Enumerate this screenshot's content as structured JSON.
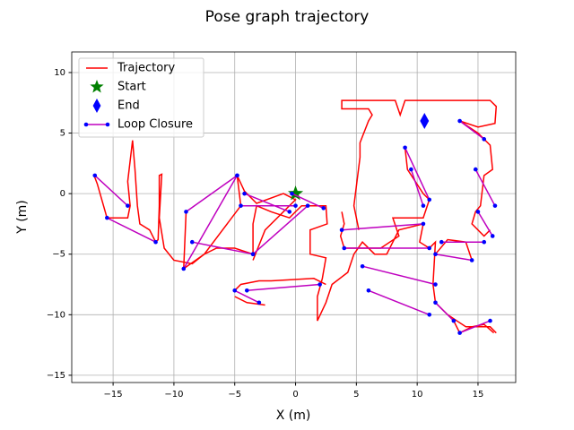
{
  "chart_data": {
    "type": "line",
    "title": "Pose graph trajectory",
    "x_label": "X (m)",
    "y_label": "Y (m)",
    "xlim": [
      -18.4,
      18.1
    ],
    "ylim": [
      -15.6,
      11.7
    ],
    "xticks": [
      {
        "value": -15,
        "label": "−15"
      },
      {
        "value": -10,
        "label": "−10"
      },
      {
        "value": -5,
        "label": "−5"
      },
      0,
      5,
      10,
      15
    ],
    "yticks": [
      {
        "value": -15,
        "label": "−15"
      },
      {
        "value": -10,
        "label": "−10"
      },
      {
        "value": -5,
        "label": "−5"
      },
      0,
      5,
      10
    ],
    "grid": true,
    "legend": "upper left",
    "series": [
      {
        "name": "Trajectory",
        "color": "#ff0000",
        "x": [
          -16.6,
          -16.3,
          -15.5,
          -13.8,
          -13.6,
          -13.8,
          -13.4,
          -13.2,
          -13,
          -12.8,
          -12,
          -11.5,
          -11.3,
          -11.2,
          -11.2,
          -11,
          -11.2,
          -10.8,
          -10,
          -8.5,
          -7.5,
          -6.5,
          -5,
          -3.5,
          -3.5,
          -3.2,
          -2,
          -0.5,
          0,
          0.5,
          2.5,
          2.6,
          1.2,
          1.2,
          2.5,
          2.2,
          1.8,
          1.8,
          2.5,
          3,
          4.3,
          4.8,
          5.5,
          6.5,
          7.5,
          8.5,
          10.5,
          10.2,
          11,
          11.5,
          11.3,
          11.5,
          12.5,
          14,
          16,
          16.5,
          null,
          5.2,
          4.8,
          5.3,
          5.3,
          6,
          6.3,
          6,
          3.8,
          3.8,
          8.2,
          8.6,
          9,
          16,
          16.5,
          16.4,
          15,
          13.5,
          15,
          16,
          16.2,
          15.5,
          15.2,
          14.8,
          14.5,
          15.5,
          16,
          null,
          -9,
          -9.2,
          -7.5,
          -4.5,
          -4.8,
          -4.2,
          -3.2,
          -1,
          0,
          -2.5,
          -3.5,
          null,
          -5,
          -4.5,
          -3,
          -2,
          1.5,
          2.5,
          null,
          -5,
          -4,
          -2.5,
          null,
          9,
          9.2,
          10.5,
          11,
          10.5,
          9.5,
          8,
          8.5,
          7,
          4,
          3.7,
          4,
          3.8,
          null,
          11.5,
          12.5,
          14,
          14.5,
          null,
          13,
          13.5,
          14.5,
          15.5,
          16.3
        ],
        "values": [
          1.6,
          0.8,
          -2,
          -2,
          -1,
          1,
          4.4,
          2,
          -1,
          -2.5,
          -3,
          -4,
          -3.8,
          -1,
          1.5,
          1.6,
          -2,
          -4.5,
          -5.5,
          -5.8,
          -5,
          -4.5,
          -4.5,
          -5,
          -2.5,
          -1,
          -1.5,
          -2,
          -1.5,
          -1,
          -1,
          -2.5,
          -3,
          -5,
          -5.3,
          -7,
          -8.5,
          -10.5,
          -9,
          -7.5,
          -6.5,
          -5,
          -4,
          -5,
          -5,
          -3,
          -2.5,
          -4,
          -4.5,
          -4,
          -7.5,
          -9,
          -10,
          -11,
          -11,
          -11.5,
          null,
          -3,
          -1,
          3,
          4.2,
          6,
          6.5,
          7,
          7,
          7.7,
          7.7,
          6.5,
          7.7,
          7.7,
          7.2,
          5.8,
          5.5,
          6,
          5,
          4,
          2,
          1.5,
          -1,
          -1.5,
          -2.5,
          -3.5,
          -3,
          null,
          -1.5,
          -6.2,
          -5,
          -1,
          1.5,
          0.2,
          -0.8,
          0,
          -0.5,
          -3,
          -5.5,
          null,
          -8,
          -7.5,
          -7.2,
          -7.2,
          -7,
          -7.5,
          null,
          -8.5,
          -9,
          -9.2,
          null,
          3.8,
          2,
          0,
          -0.5,
          -2,
          -2,
          -2,
          -3.5,
          -4.5,
          -4.5,
          -3.5,
          -2.5,
          -1.5,
          null,
          -5,
          -3.8,
          -4,
          -5.5,
          null,
          -10.5,
          -11.5,
          -11,
          -10.8,
          -11.5
        ]
      },
      {
        "name": "Start",
        "color": "#008000",
        "marker": "star",
        "x": [
          0
        ],
        "values": [
          0
        ]
      },
      {
        "name": "End",
        "color": "#0000ff",
        "marker": "diamond",
        "x": [
          10.6
        ],
        "values": [
          6
        ]
      },
      {
        "name": "Loop Closure",
        "color": "#bf00bf",
        "marker_color": "#0000ff",
        "x": [
          -15.5,
          -11.5,
          null,
          -16.5,
          -13.8,
          null,
          -9,
          -4.8,
          null,
          -9.2,
          -4.8,
          null,
          -8.5,
          -3.5,
          null,
          -4.5,
          0,
          null,
          -4.2,
          -0.5,
          null,
          -3.5,
          1,
          null,
          -4,
          2,
          null,
          -5,
          -3,
          null,
          3.8,
          10.5,
          null,
          4,
          11,
          null,
          5.5,
          11.5,
          null,
          6,
          11,
          null,
          9,
          11,
          null,
          9.5,
          10.5,
          null,
          11.5,
          14.5,
          null,
          12,
          15.5,
          null,
          13.5,
          16,
          null,
          13.5,
          15.5,
          null,
          14.8,
          16.4,
          null,
          15,
          16.2,
          null,
          11.5,
          13,
          null,
          -0.3,
          2.3
        ],
        "values": [
          -2,
          -4,
          null,
          1.5,
          -1,
          null,
          -1.5,
          1.5,
          null,
          -6.2,
          1.5,
          null,
          -4,
          -5,
          null,
          -1,
          -1,
          null,
          0,
          -1.5,
          null,
          -5,
          -1,
          null,
          -8,
          -7.5,
          null,
          -8,
          -9,
          null,
          -3,
          -2.5,
          null,
          -4.5,
          -4.5,
          null,
          -6,
          -7.5,
          null,
          -8,
          -10,
          null,
          3.8,
          -0.5,
          null,
          2,
          -1,
          null,
          -5,
          -5.5,
          null,
          -4,
          -4,
          null,
          -11.5,
          -10.5,
          null,
          6,
          4.5,
          null,
          2,
          -1,
          null,
          -1.5,
          -3.5,
          null,
          -9,
          -10.5,
          null,
          0,
          -1.2
        ]
      }
    ]
  }
}
